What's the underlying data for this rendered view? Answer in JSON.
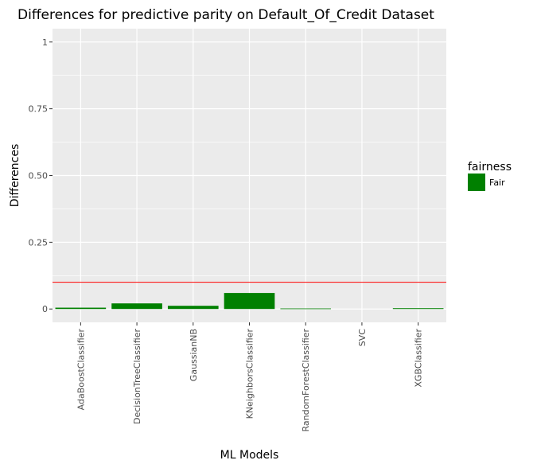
{
  "chart_data": {
    "type": "bar",
    "title": "Differences for predictive parity on Default_Of_Credit Dataset",
    "xlabel": "ML Models",
    "ylabel": "Differences",
    "categories": [
      "AdaBoostClassifier",
      "DecisionTreeClassifier",
      "GaussianNB",
      "KNeighborsClassifier",
      "RandomForestClassifier",
      "SVC",
      "XGBClassifier"
    ],
    "values": [
      0.005,
      0.021,
      0.012,
      0.06,
      0.002,
      0.0,
      0.003
    ],
    "ylim": [
      -0.05,
      1.05
    ],
    "yticks": [
      0,
      0.25,
      0.5,
      0.75,
      1
    ],
    "ytick_labels": [
      "0",
      "0.25",
      "0.50",
      "0.75",
      "1"
    ],
    "threshold": 0.1,
    "threshold_color": "#ff0000",
    "bar_color": "#008000",
    "grid": true,
    "panel_background": "#ebebeb",
    "legend": {
      "title": "fairness",
      "position": "right",
      "entries": [
        {
          "label": "Fair",
          "color": "#008000"
        }
      ]
    }
  }
}
